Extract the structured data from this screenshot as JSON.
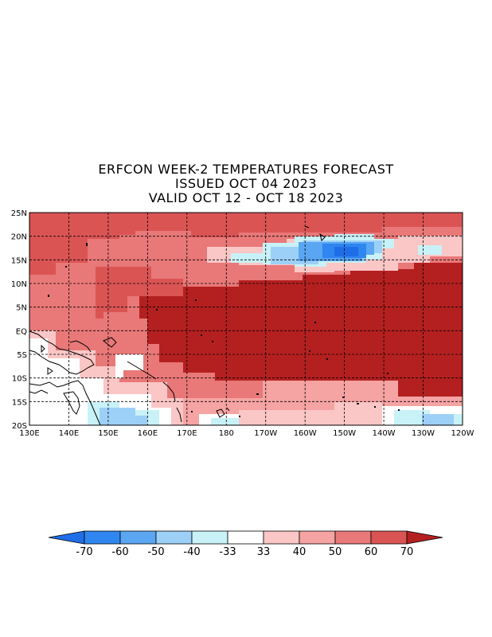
{
  "title": {
    "line1": "ERFCON WEEK-2 TEMPERATURES FORECAST",
    "line2": "ISSUED OCT 04 2023",
    "line3": "VALID  OCT 12 - OCT 18 2023"
  },
  "map": {
    "lon_labels": [
      "130E",
      "140E",
      "150E",
      "160E",
      "170E",
      "180",
      "170W",
      "160W",
      "150W",
      "140W",
      "130W",
      "120W"
    ],
    "lat_labels": [
      "25N",
      "20N",
      "15N",
      "10N",
      "5N",
      "EQ",
      "5S",
      "10S",
      "15S",
      "20S"
    ],
    "lon_range": [
      130,
      240
    ],
    "lat_range": [
      -20,
      25
    ],
    "grid": "dashed"
  },
  "colorbar": {
    "labels": [
      "-70",
      "-60",
      "-50",
      "-40",
      "-33",
      "33",
      "40",
      "50",
      "60",
      "70"
    ],
    "colors": [
      "#1f6ee8",
      "#2f86f0",
      "#5aa6f2",
      "#9dd0f7",
      "#c8f2f7",
      "#ffffff",
      "#fbc6c6",
      "#f5a3a3",
      "#e97878",
      "#db5454",
      "#b42020"
    ]
  },
  "palette": {
    "p1": "#fbc6c6",
    "p2": "#f5a3a3",
    "p3": "#e97878",
    "p4": "#db5454",
    "p5": "#b42020",
    "b1": "#c8f2f7",
    "b2": "#9dd0f7",
    "b3": "#5aa6f2",
    "b4": "#2f86f0",
    "b5": "#1f6ee8"
  }
}
